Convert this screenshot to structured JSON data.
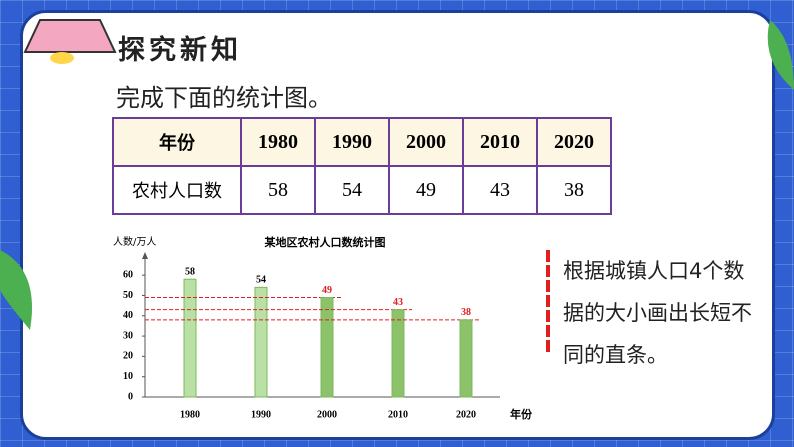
{
  "header": {
    "title": "探究新知"
  },
  "instruction": "完成下面的统计图。",
  "table": {
    "rows": [
      [
        "年份",
        "1980",
        "1990",
        "2000",
        "2010",
        "2020"
      ],
      [
        "农村人口数",
        58,
        54,
        49,
        43,
        38
      ]
    ]
  },
  "chart_data": {
    "type": "bar",
    "title": "某地区农村人口数统计图",
    "y_label": "人数/万人",
    "x_label": "年份",
    "categories": [
      "1980",
      "1990",
      "2000",
      "2010",
      "2020"
    ],
    "values": [
      58,
      54,
      49,
      43,
      38
    ],
    "colors": [
      "#b9e0a5",
      "#b9e0a5",
      "#8cc269",
      "#8cc269",
      "#8cc269"
    ],
    "label_colors": [
      "#000000",
      "#000000",
      "#e02020",
      "#e02020",
      "#e02020"
    ],
    "ylim": [
      0,
      65
    ],
    "yticks": [
      0,
      10,
      20,
      30,
      40,
      50,
      60
    ]
  },
  "note": "根据城镇人口4个数据的大小画出长短不同的直条。"
}
